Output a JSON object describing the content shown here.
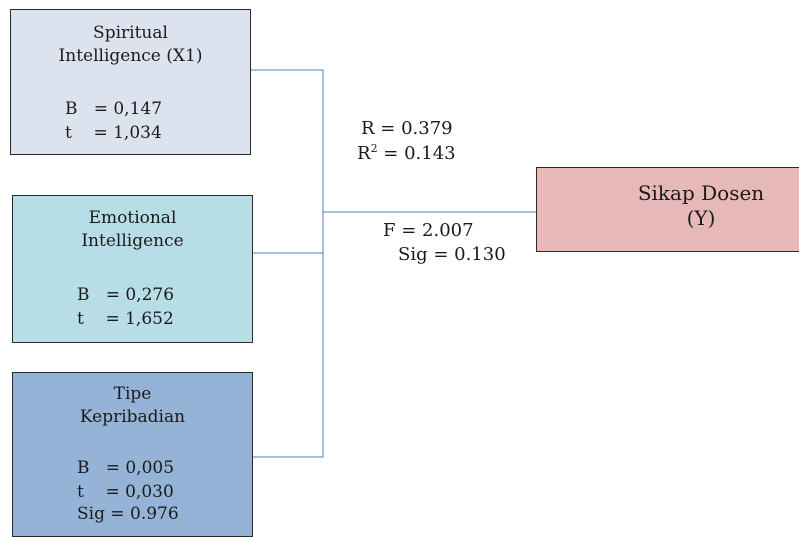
{
  "predictors": [
    {
      "title_lines": [
        "Spiritual",
        "Intelligence (X1)"
      ],
      "stats": [
        "B   = 0,147",
        "t    = 1,034"
      ]
    },
    {
      "title_lines": [
        "Emotional",
        "Intelligence"
      ],
      "stats": [
        "B   = 0,276",
        "t    = 1,652"
      ]
    },
    {
      "title_lines": [
        "Tipe",
        "Kepribadian"
      ],
      "stats": [
        "B   = 0,005",
        "t    = 0,030",
        "Sig = 0.976"
      ]
    }
  ],
  "outcome": {
    "title_lines": [
      "Sikap Dosen",
      "(Y)"
    ]
  },
  "model": {
    "r": "R = 0.379",
    "r2_prefix": "R",
    "r2_exponent": "2",
    "r2_suffix": " = 0.143",
    "f": "F = 2.007",
    "sig": "Sig = 0.130"
  },
  "colors": {
    "x1_fill": "#dce3ef",
    "x2_fill": "#b7dde7",
    "x3_fill": "#95b3d7",
    "y_fill": "#e6b8b7",
    "connector": "#4f81bd"
  }
}
